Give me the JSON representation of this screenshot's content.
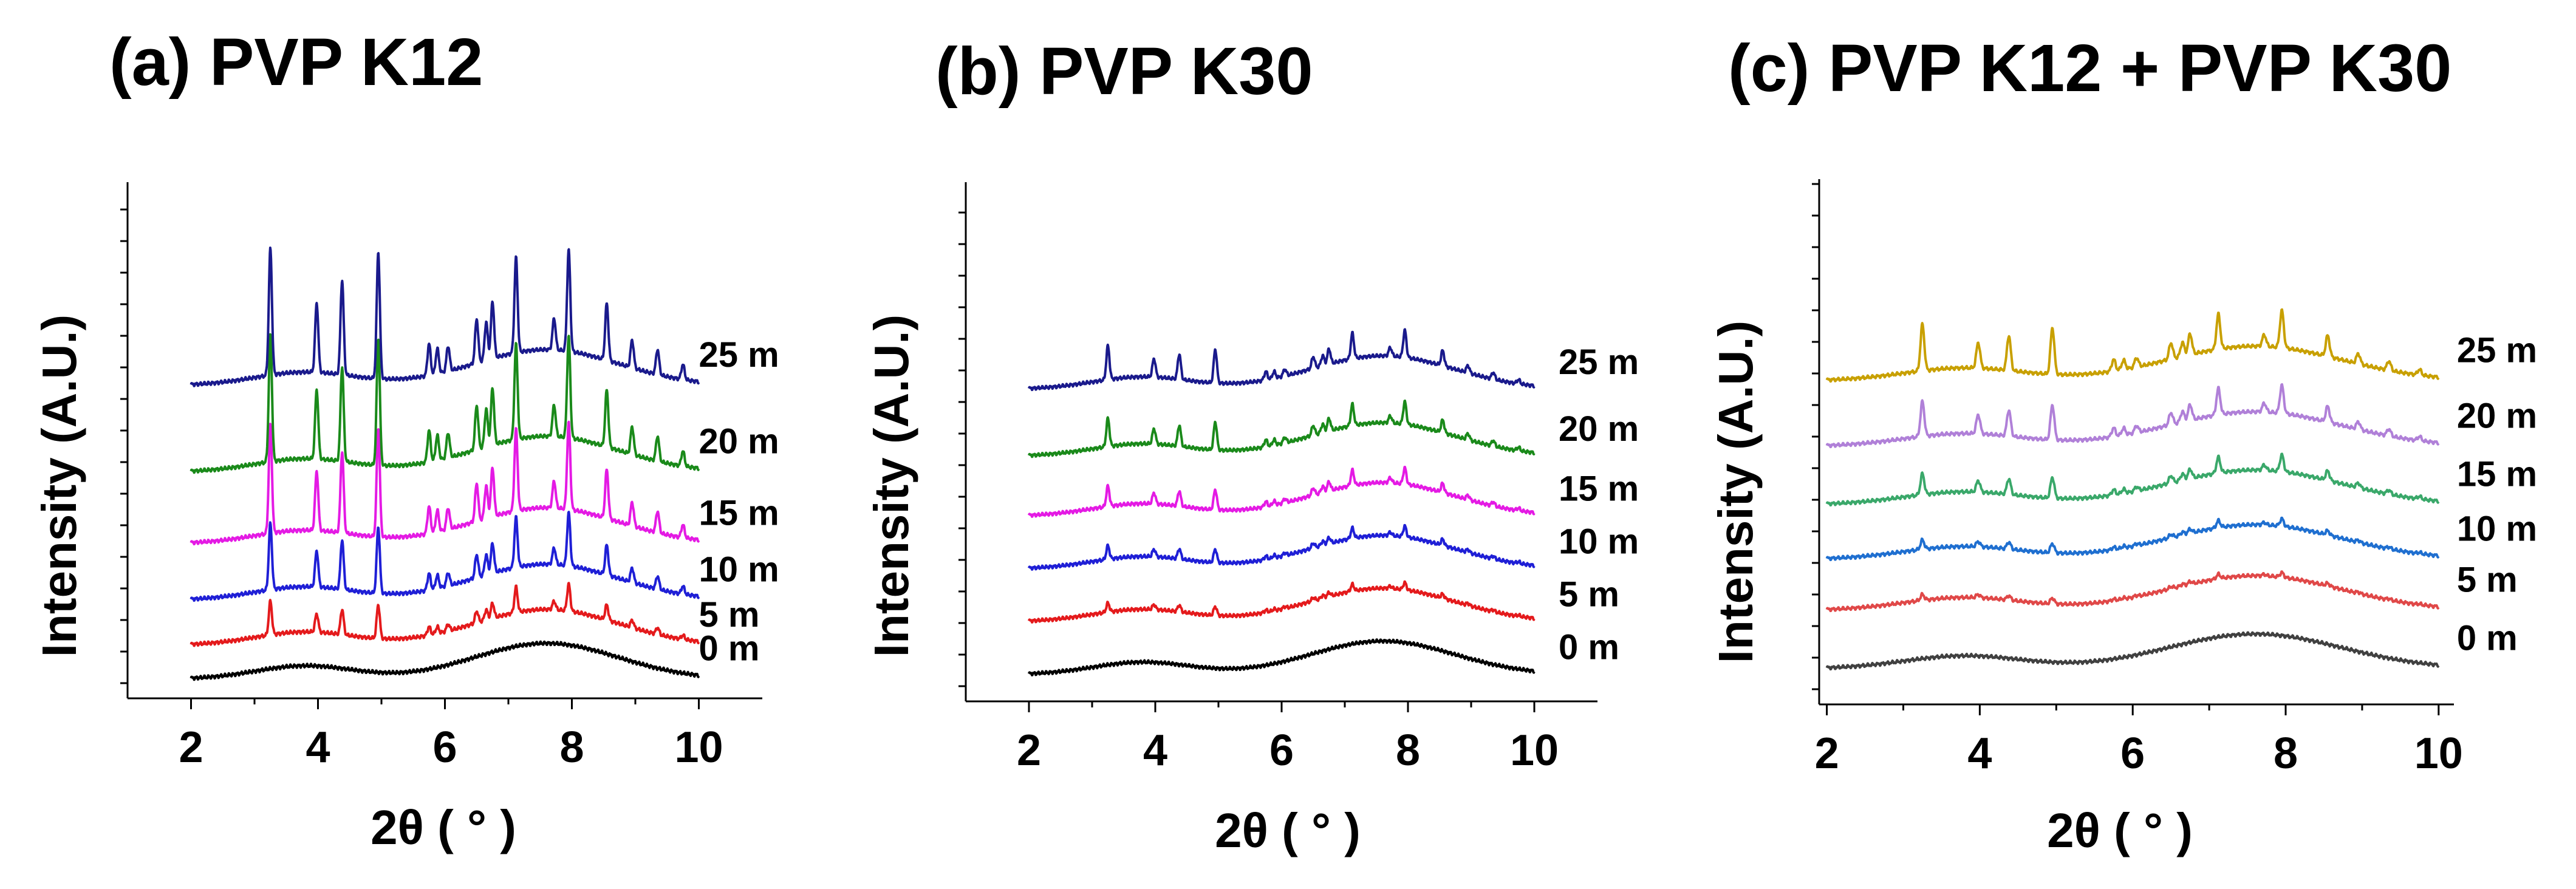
{
  "chart_data": [
    {
      "type": "line",
      "title": "(a) PVP K12",
      "xlabel": "2θ ( ° )",
      "ylabel": "Intensity (A.U.)",
      "xlim": [
        1,
        11
      ],
      "xticks": [
        "2",
        "4",
        "6",
        "8",
        "10"
      ],
      "series": [
        {
          "name": "0 m",
          "color": "#000000",
          "peak_scale": 0.0,
          "base": 0.0
        },
        {
          "name": "5 m",
          "color": "#e41a1c",
          "peak_scale": 0.28,
          "base": 0.9
        },
        {
          "name": "10 m",
          "color": "#1f1fd6",
          "peak_scale": 0.55,
          "base": 2.1
        },
        {
          "name": "15 m",
          "color": "#e41ae4",
          "peak_scale": 0.9,
          "base": 3.6
        },
        {
          "name": "20 m",
          "color": "#1a8a1a",
          "peak_scale": 1.05,
          "base": 5.5
        },
        {
          "name": "25 m",
          "color": "#1a1a8c",
          "peak_scale": 1.05,
          "base": 7.8
        }
      ]
    },
    {
      "type": "line",
      "title": "(b) PVP K30",
      "xlabel": "2θ ( ° )",
      "ylabel": "Intensity (A.U.)",
      "xlim": [
        1,
        11
      ],
      "xticks": [
        "2",
        "4",
        "6",
        "8",
        "10"
      ],
      "series": [
        {
          "name": "0 m",
          "color": "#000000",
          "peak_scale": 0.0,
          "base": 0.0
        },
        {
          "name": "5 m",
          "color": "#e41a1c",
          "peak_scale": 0.08,
          "base": 1.5
        },
        {
          "name": "10 m",
          "color": "#1f1fd6",
          "peak_scale": 0.12,
          "base": 3.0
        },
        {
          "name": "15 m",
          "color": "#e41ae4",
          "peak_scale": 0.18,
          "base": 4.5
        },
        {
          "name": "20 m",
          "color": "#1a8a1a",
          "peak_scale": 0.25,
          "base": 6.2
        },
        {
          "name": "25 m",
          "color": "#1a1a8c",
          "peak_scale": 0.3,
          "base": 8.1
        }
      ]
    },
    {
      "type": "line",
      "title": "(c) PVP K12 + PVP K30",
      "xlabel": "2θ ( ° )",
      "ylabel": "Intensity (A.U.)",
      "xlim": [
        1.9,
        10.2
      ],
      "xticks": [
        "2",
        "4",
        "6",
        "8",
        "10"
      ],
      "series": [
        {
          "name": "0 m",
          "color": "#404040",
          "peak_scale": 0.0,
          "base": 0.0
        },
        {
          "name": "5 m",
          "color": "#e04848",
          "peak_scale": 0.05,
          "base": 1.6
        },
        {
          "name": "10 m",
          "color": "#1f6fd0",
          "peak_scale": 0.08,
          "base": 3.0
        },
        {
          "name": "15 m",
          "color": "#3aa86a",
          "peak_scale": 0.18,
          "base": 4.5
        },
        {
          "name": "20 m",
          "color": "#b080d8",
          "peak_scale": 0.3,
          "base": 6.1
        },
        {
          "name": "25 m",
          "color": "#c8a000",
          "peak_scale": 0.4,
          "base": 7.9
        }
      ]
    }
  ]
}
